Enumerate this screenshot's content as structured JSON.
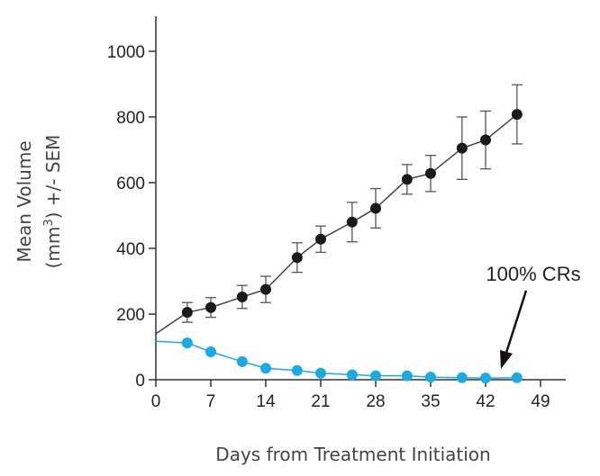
{
  "chart_data": {
    "type": "line",
    "xlabel": "Days from Treatment Initiation",
    "ylabel_line1": "Mean Volume",
    "ylabel_line2_prefix": "(mm",
    "ylabel_line2_sup": "3",
    "ylabel_line2_suffix": ") +/- SEM",
    "xlim": [
      0,
      49
    ],
    "ylim": [
      0,
      1000
    ],
    "x_ticks": [
      "0",
      "7",
      "14",
      "21",
      "28",
      "35",
      "42",
      "49"
    ],
    "y_ticks": [
      "0",
      "200",
      "400",
      "600",
      "800",
      "1000"
    ],
    "grid": false,
    "annotation": "100% CRs",
    "series": [
      {
        "color": "#1a1a1a",
        "line_color": "#444444",
        "line_start": {
          "x": 0,
          "y": 140
        },
        "points": [
          {
            "x": 4,
            "y": 205,
            "err": 30
          },
          {
            "x": 7,
            "y": 220,
            "err": 30
          },
          {
            "x": 11,
            "y": 252,
            "err": 35
          },
          {
            "x": 14,
            "y": 275,
            "err": 40
          },
          {
            "x": 18,
            "y": 372,
            "err": 45
          },
          {
            "x": 21,
            "y": 428,
            "err": 40
          },
          {
            "x": 25,
            "y": 480,
            "err": 60
          },
          {
            "x": 28,
            "y": 522,
            "err": 60
          },
          {
            "x": 32,
            "y": 610,
            "err": 45
          },
          {
            "x": 35,
            "y": 628,
            "err": 55
          },
          {
            "x": 39,
            "y": 705,
            "err": 95
          },
          {
            "x": 42,
            "y": 730,
            "err": 88
          },
          {
            "x": 46,
            "y": 808,
            "err": 90
          }
        ]
      },
      {
        "color": "#1fa9e1",
        "line_color": "#1fa9e1",
        "line_start": {
          "x": 0,
          "y": 117
        },
        "points": [
          {
            "x": 4,
            "y": 112
          },
          {
            "x": 7,
            "y": 85
          },
          {
            "x": 11,
            "y": 55
          },
          {
            "x": 14,
            "y": 35
          },
          {
            "x": 18,
            "y": 28
          },
          {
            "x": 21,
            "y": 20
          },
          {
            "x": 25,
            "y": 15
          },
          {
            "x": 28,
            "y": 12
          },
          {
            "x": 32,
            "y": 12
          },
          {
            "x": 35,
            "y": 8
          },
          {
            "x": 39,
            "y": 6
          },
          {
            "x": 42,
            "y": 5
          },
          {
            "x": 46,
            "y": 6
          }
        ]
      }
    ]
  }
}
